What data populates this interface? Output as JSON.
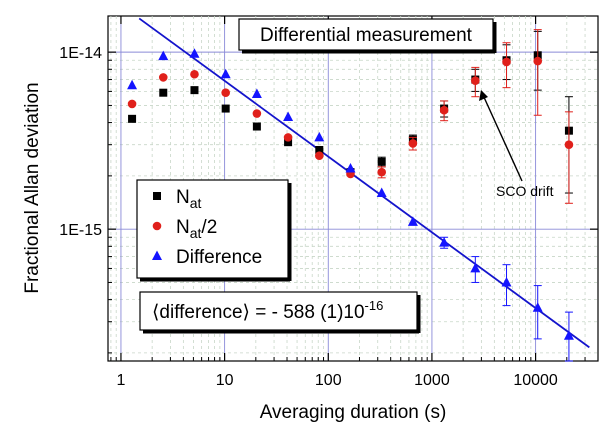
{
  "chart_data": {
    "type": "scatter",
    "xlabel": "Averaging duration (s)",
    "ylabel": "Fractional Allan deviation",
    "xscale": "log",
    "yscale": "log",
    "xlim": [
      0.75,
      40000
    ],
    "ylim": [
      1.8e-16,
      1.6e-14
    ],
    "grid": true,
    "x_ticks": [
      {
        "value": 1,
        "label": "1"
      },
      {
        "value": 10,
        "label": "10"
      },
      {
        "value": 100,
        "label": "100"
      },
      {
        "value": 1000,
        "label": "1000"
      },
      {
        "value": 10000,
        "label": "10000"
      }
    ],
    "y_ticks": [
      {
        "value": 1e-15,
        "label": "1E-15"
      },
      {
        "value": 1e-14,
        "label": "1E-14"
      }
    ],
    "legend": {
      "position": "middle-left",
      "entries": [
        {
          "text": "N",
          "sub": "at",
          "tail": "",
          "series": 0
        },
        {
          "text": "N",
          "sub": "at",
          "tail": "/2",
          "series": 1
        },
        {
          "text": "Difference",
          "sub": "",
          "tail": "",
          "series": 2
        }
      ]
    },
    "annotations": {
      "title_box": "Differential measurement",
      "result_box": {
        "open": "⟨",
        "mid": "difference",
        "close": "⟩ = - 588 (1)10",
        "sup": "-16"
      },
      "arrow_label": "SCO drift"
    },
    "series": [
      {
        "marker": "square",
        "color": "#000000",
        "points": [
          {
            "x": 1.28,
            "y": 4.2e-15
          },
          {
            "x": 2.56,
            "y": 5.9e-15
          },
          {
            "x": 5.12,
            "y": 6.1e-15
          },
          {
            "x": 10.24,
            "y": 4.8e-15
          },
          {
            "x": 20.48,
            "y": 3.8e-15
          },
          {
            "x": 40.96,
            "y": 3.1e-15
          },
          {
            "x": 81.92,
            "y": 2.8e-15
          },
          {
            "x": 163.84,
            "y": 2.1e-15
          },
          {
            "x": 327.68,
            "y": 2.4e-15,
            "err": 1.5e-16
          },
          {
            "x": 655.36,
            "y": 3.2e-15,
            "err": 2e-16
          },
          {
            "x": 1310.72,
            "y": 4.8e-15,
            "err": 5e-16
          },
          {
            "x": 2621.44,
            "y": 7e-15,
            "err": 1e-15
          },
          {
            "x": 5242.88,
            "y": 9e-15,
            "err": 2e-15
          },
          {
            "x": 10485.76,
            "y": 9.6e-15,
            "err": 3.5e-15
          },
          {
            "x": 20971.52,
            "y": 3.6e-15,
            "err": 2e-15
          }
        ]
      },
      {
        "marker": "circle",
        "color": "#e0201b",
        "points": [
          {
            "x": 1.28,
            "y": 5.1e-15
          },
          {
            "x": 2.56,
            "y": 7.2e-15
          },
          {
            "x": 5.12,
            "y": 7.5e-15
          },
          {
            "x": 10.24,
            "y": 5.9e-15
          },
          {
            "x": 20.48,
            "y": 4.5e-15
          },
          {
            "x": 40.96,
            "y": 3.3e-15
          },
          {
            "x": 81.92,
            "y": 2.6e-15
          },
          {
            "x": 163.84,
            "y": 2.05e-15
          },
          {
            "x": 327.68,
            "y": 2.1e-15,
            "err": 1.5e-16
          },
          {
            "x": 655.36,
            "y": 3.05e-15,
            "err": 2.5e-16
          },
          {
            "x": 1310.72,
            "y": 4.7e-15,
            "err": 6e-16
          },
          {
            "x": 2621.44,
            "y": 6.9e-15,
            "err": 1.3e-15
          },
          {
            "x": 5242.88,
            "y": 8.8e-15,
            "err": 2.5e-15
          },
          {
            "x": 10485.76,
            "y": 8.9e-15,
            "err": 4.5e-15
          },
          {
            "x": 20971.52,
            "y": 3e-15,
            "err": 1.6e-15
          }
        ]
      },
      {
        "marker": "triangle",
        "color": "#1414ff",
        "points": [
          {
            "x": 1.28,
            "y": 6.5e-15
          },
          {
            "x": 2.56,
            "y": 9.5e-15
          },
          {
            "x": 5.12,
            "y": 9.8e-15
          },
          {
            "x": 10.24,
            "y": 7.5e-15
          },
          {
            "x": 20.48,
            "y": 5.8e-15
          },
          {
            "x": 40.96,
            "y": 4.3e-15
          },
          {
            "x": 81.92,
            "y": 3.3e-15
          },
          {
            "x": 163.84,
            "y": 2.2e-15
          },
          {
            "x": 327.68,
            "y": 1.6e-15
          },
          {
            "x": 655.36,
            "y": 1.1e-15
          },
          {
            "x": 1310.72,
            "y": 8.4e-16,
            "err": 6e-17
          },
          {
            "x": 2621.44,
            "y": 6e-16,
            "err": 1e-16
          },
          {
            "x": 5242.88,
            "y": 5e-16,
            "err": 1.3e-16
          },
          {
            "x": 10485.76,
            "y": 3.6e-16,
            "err": 1.2e-16
          },
          {
            "x": 20971.52,
            "y": 2.5e-16,
            "err": 9e-17
          }
        ]
      }
    ],
    "fit_line": {
      "color": "#1414cc",
      "x1": 1.5,
      "y1": 1.55e-14,
      "x2": 33000,
      "y2": 2.15e-16
    }
  }
}
